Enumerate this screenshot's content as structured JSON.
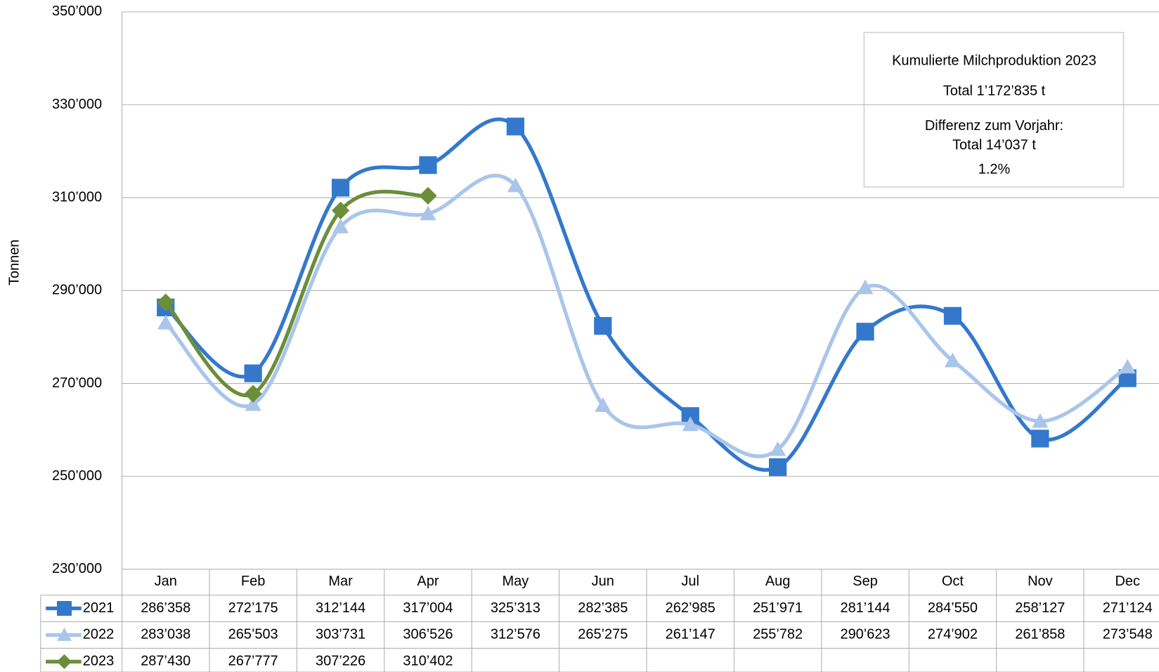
{
  "chart_data": {
    "type": "line",
    "y_axis_label": "Tonnen",
    "categories": [
      "Jan",
      "Feb",
      "Mar",
      "Apr",
      "May",
      "Jun",
      "Jul",
      "Aug",
      "Sep",
      "Oct",
      "Nov",
      "Dec"
    ],
    "ylim": [
      230000,
      350000
    ],
    "yticks": [
      {
        "value": 230000,
        "label": "230’000"
      },
      {
        "value": 250000,
        "label": "250’000"
      },
      {
        "value": 270000,
        "label": "270’000"
      },
      {
        "value": 290000,
        "label": "290’000"
      },
      {
        "value": 310000,
        "label": "310’000"
      },
      {
        "value": 330000,
        "label": "330’000"
      },
      {
        "value": 350000,
        "label": "350’000"
      }
    ],
    "grid": true,
    "series": [
      {
        "name": "2021",
        "color": "#3478cc",
        "marker": "square",
        "values": [
          286358,
          272175,
          312144,
          317004,
          325313,
          282385,
          262985,
          251971,
          281144,
          284550,
          258127,
          271124
        ],
        "value_labels": [
          "286’358",
          "272’175",
          "312’144",
          "317’004",
          "325’313",
          "282’385",
          "262’985",
          "251’971",
          "281’144",
          "284’550",
          "258’127",
          "271’124"
        ]
      },
      {
        "name": "2022",
        "color": "#a9c5ea",
        "marker": "triangle",
        "values": [
          283038,
          265503,
          303731,
          306526,
          312576,
          265275,
          261147,
          255782,
          290623,
          274902,
          261858,
          273548
        ],
        "value_labels": [
          "283’038",
          "265’503",
          "303’731",
          "306’526",
          "312’576",
          "265’275",
          "261’147",
          "255’782",
          "290’623",
          "274’902",
          "261’858",
          "273’548"
        ]
      },
      {
        "name": "2023",
        "color": "#6b8e3a",
        "marker": "diamond",
        "values": [
          287430,
          267777,
          307226,
          310402,
          null,
          null,
          null,
          null,
          null,
          null,
          null,
          null
        ],
        "value_labels": [
          "287’430",
          "267’777",
          "307’226",
          "310’402",
          null,
          null,
          null,
          null,
          null,
          null,
          null,
          null
        ]
      }
    ],
    "annotation": [
      "Kumulierte Milchproduktion 2023",
      "Total 1’172’835 t",
      "Differenz zum Vorjahr:",
      "Total 14’037 t",
      "1.2%"
    ]
  }
}
